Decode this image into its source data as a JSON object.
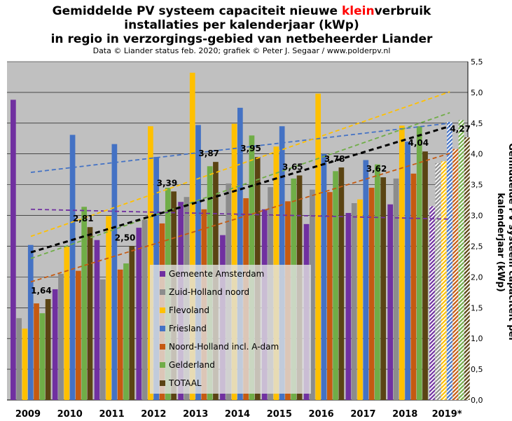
{
  "title": {
    "line1_a": "Gemiddelde  PV systeem capaciteit  nieuwe ",
    "line1_highlight": "klein",
    "line1_b": "verbruik",
    "line2": "installaties  per kalenderjaar (kWp)",
    "line3": "in regio in verzorgings-gebied  van netbeheerder Liander"
  },
  "credit": "Data © Liander status feb. 2020; grafiek © Peter J. Segaar / www.polderpv.nl",
  "chart_data": {
    "type": "bar",
    "ylabel": "Gemiddelde  PV  systeem  capaciteit  per  kalenderjaar  (kWp)",
    "ylim": [
      0,
      5.5
    ],
    "yticks": [
      "0,0",
      "0,5",
      "1,0",
      "1,5",
      "2,0",
      "2,5",
      "3,0",
      "3,5",
      "4,0",
      "4,5",
      "5,0",
      "5,5"
    ],
    "categories": [
      "2009",
      "2010",
      "2011",
      "2012",
      "2013",
      "2014",
      "2015",
      "2016",
      "2017",
      "2018",
      "2019*"
    ],
    "series": [
      {
        "name": "Gemeente Amsterdam",
        "color": "#7030a0",
        "values": [
          4.88,
          1.8,
          2.6,
          2.8,
          3.22,
          2.68,
          3.1,
          2.86,
          3.04,
          3.18,
          3.15
        ]
      },
      {
        "name": "Zuid-Holland noord",
        "color": "#8c8c8c",
        "values": [
          1.33,
          2.05,
          1.96,
          2.93,
          3.3,
          3.52,
          3.46,
          3.42,
          3.2,
          3.6,
          3.85
        ]
      },
      {
        "name": "Flevoland",
        "color": "#ffc000",
        "values": [
          1.16,
          2.49,
          2.99,
          4.45,
          5.32,
          4.49,
          4.12,
          4.98,
          3.26,
          4.46,
          3.88
        ]
      },
      {
        "name": "Friesland",
        "color": "#4472c4",
        "values": [
          2.52,
          4.31,
          4.16,
          3.95,
          4.47,
          4.75,
          4.45,
          4.0,
          3.9,
          4.2,
          4.52
        ]
      },
      {
        "name": "Noord-Holland incl. A-dam",
        "color": "#c55a11",
        "values": [
          1.57,
          2.1,
          2.12,
          2.87,
          3.1,
          3.28,
          3.23,
          3.38,
          3.45,
          3.68,
          4.08
        ]
      },
      {
        "name": "Gelderland",
        "color": "#70ad47",
        "values": [
          1.41,
          3.14,
          2.22,
          3.45,
          3.8,
          4.3,
          3.6,
          3.72,
          3.83,
          4.45,
          4.55
        ]
      },
      {
        "name": "TOTAAL",
        "color": "#5a4413",
        "values": [
          1.64,
          2.81,
          2.5,
          3.39,
          3.87,
          3.95,
          3.65,
          3.78,
          3.62,
          4.04,
          4.27
        ]
      }
    ],
    "data_labels": [
      "1,64",
      "2,81",
      "2,50",
      "3,39",
      "3,87",
      "3,95",
      "3,65",
      "3,78",
      "3,62",
      "4,04",
      "4,27"
    ],
    "grid": true,
    "legend_position": "bottom-center",
    "projected_category": "2019*",
    "trendlines": [
      {
        "series": "Gemeente Amsterdam",
        "color": "#7030a0",
        "start": 3.1,
        "end": 2.94
      },
      {
        "series": "Friesland",
        "color": "#4472c4",
        "start": 3.7,
        "end": 4.5
      },
      {
        "series": "Flevoland",
        "color": "#ffc000",
        "start": 2.66,
        "end": 5.01
      },
      {
        "series": "Gelderland",
        "color": "#70ad47",
        "start": 2.3,
        "end": 4.67
      },
      {
        "series": "Noord-Holland incl. A-dam",
        "color": "#c55a11",
        "start": 1.92,
        "end": 4.01
      },
      {
        "series": "TOTAAL",
        "color": "#000000",
        "start": 2.4,
        "end": 4.45,
        "bold": true
      }
    ]
  }
}
